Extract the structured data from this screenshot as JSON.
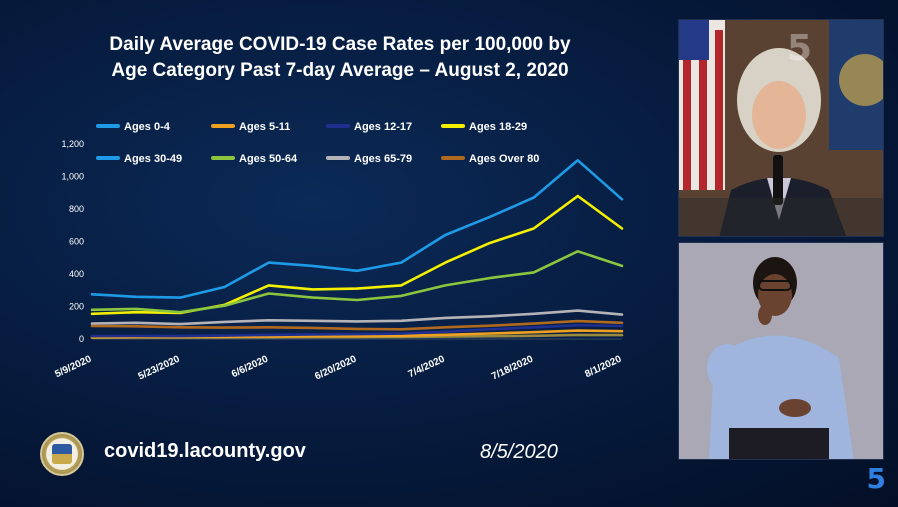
{
  "slide": {
    "title_line1": "Daily Average COVID-19 Case Rates per 100,000 by",
    "title_line2": "Age Category Past 7-day Average – August 2, 2020",
    "footer_url": "covid19.lacounty.gov",
    "footer_date": "8/5/2020",
    "seal_icon": "la-county-seal-icon",
    "station_logo_icon": "channel-5-logo-icon"
  },
  "chart_data": {
    "type": "line",
    "title": "",
    "xlabel": "",
    "ylabel": "",
    "ylim": [
      0,
      1200
    ],
    "yticks": [
      "0",
      "200",
      "400",
      "600",
      "800",
      "1,000",
      "1,200"
    ],
    "ytick_values": [
      0,
      200,
      400,
      600,
      800,
      1000,
      1200
    ],
    "xticks": [
      "5/9/2020",
      "5/23/2020",
      "6/6/2020",
      "6/20/2020",
      "7/4/2020",
      "7/18/2020",
      "8/1/2020"
    ],
    "grid": false,
    "legend_position": "top",
    "x": [
      "5/9/2020",
      "5/16/2020",
      "5/23/2020",
      "5/30/2020",
      "6/6/2020",
      "6/13/2020",
      "6/20/2020",
      "6/27/2020",
      "7/4/2020",
      "7/11/2020",
      "7/18/2020",
      "7/25/2020",
      "8/1/2020"
    ],
    "series": [
      {
        "name": "Ages 0-4",
        "color": "#9a8a40",
        "values": [
          8,
          9,
          9,
          10,
          11,
          12,
          12,
          13,
          15,
          17,
          20,
          25,
          24
        ]
      },
      {
        "name": "Ages 5-11",
        "color": "#f0a020",
        "values": [
          12,
          13,
          12,
          14,
          16,
          18,
          18,
          20,
          26,
          34,
          42,
          52,
          48
        ]
      },
      {
        "name": "Ages 12-17",
        "color": "#1f2f8f",
        "values": [
          18,
          19,
          18,
          21,
          25,
          28,
          30,
          33,
          45,
          60,
          72,
          85,
          80
        ]
      },
      {
        "name": "Ages 18-29",
        "color": "#f4f000",
        "values": [
          155,
          165,
          160,
          210,
          330,
          305,
          310,
          330,
          470,
          590,
          680,
          880,
          680
        ]
      },
      {
        "name": "Ages 30-49",
        "color": "#1e9be6",
        "values": [
          275,
          260,
          255,
          320,
          470,
          450,
          420,
          470,
          640,
          750,
          870,
          1100,
          860
        ]
      },
      {
        "name": "Ages 50-64",
        "color": "#8cc63e",
        "values": [
          180,
          185,
          165,
          205,
          280,
          255,
          240,
          265,
          330,
          375,
          410,
          540,
          450
        ]
      },
      {
        "name": "Ages 65-79",
        "color": "#b4b4b8",
        "values": [
          95,
          100,
          92,
          105,
          115,
          112,
          108,
          112,
          130,
          140,
          155,
          175,
          150
        ]
      },
      {
        "name": "Ages Over 80",
        "color": "#b06a20",
        "values": [
          80,
          78,
          72,
          70,
          72,
          68,
          62,
          60,
          72,
          82,
          95,
          110,
          100
        ]
      }
    ]
  }
}
